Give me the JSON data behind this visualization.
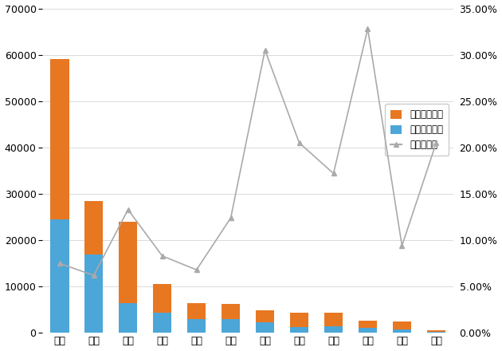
{
  "categories": [
    "广东",
    "上海",
    "浙江",
    "福建",
    "天津",
    "辽宁",
    "四川",
    "河南",
    "重庆",
    "陕西",
    "湖北",
    "海南"
  ],
  "exports": [
    34500,
    11500,
    17500,
    6200,
    3400,
    3200,
    2700,
    3200,
    2800,
    1600,
    1800,
    420
  ],
  "imports": [
    24500,
    17000,
    6500,
    4300,
    3000,
    3000,
    2200,
    1200,
    1500,
    1000,
    700,
    150
  ],
  "growth_rate": [
    0.075,
    0.062,
    0.133,
    0.083,
    0.068,
    0.124,
    0.305,
    0.205,
    0.172,
    0.328,
    0.094,
    0.205
  ],
  "bar_color_export": "#E87722",
  "bar_color_import": "#4DA6D8",
  "line_color": "#AAAAAA",
  "left_ylim": [
    0,
    70000
  ],
  "right_ylim": [
    0,
    0.35
  ],
  "left_yticks": [
    0,
    10000,
    20000,
    30000,
    40000,
    50000,
    60000,
    70000
  ],
  "right_yticks": [
    0.0,
    0.05,
    0.1,
    0.15,
    0.2,
    0.25,
    0.3,
    0.35
  ],
  "legend_export": "出口（亿元）",
  "legend_import": "进口（亿元）",
  "legend_growth": "进出口增速",
  "fig_width": 6.3,
  "fig_height": 4.4,
  "dpi": 100
}
